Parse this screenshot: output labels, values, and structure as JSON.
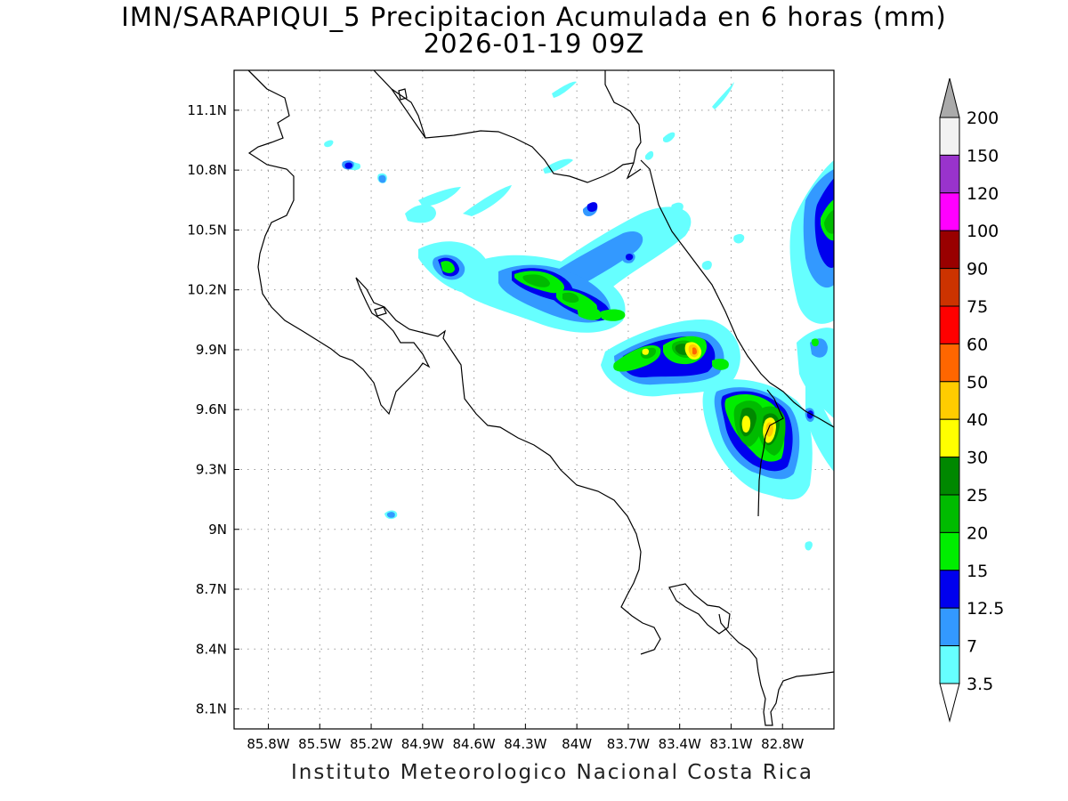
{
  "title_line1": "IMN/SARAPIQUI_5 Precipitacion Acumulada en 6 horas (mm)",
  "title_line2": "2026-01-19 09Z",
  "footer": "Instituto Meteorologico Nacional Costa Rica",
  "map": {
    "lon_range": [
      -86.0,
      -82.5
    ],
    "lat_range": [
      8.0,
      11.3
    ],
    "lon_ticks": [
      {
        "v": -85.8,
        "label": "85.8W"
      },
      {
        "v": -85.5,
        "label": "85.5W"
      },
      {
        "v": -85.2,
        "label": "85.2W"
      },
      {
        "v": -84.9,
        "label": "84.9W"
      },
      {
        "v": -84.6,
        "label": "84.6W"
      },
      {
        "v": -84.3,
        "label": "84.3W"
      },
      {
        "v": -84.0,
        "label": "84W"
      },
      {
        "v": -83.7,
        "label": "83.7W"
      },
      {
        "v": -83.4,
        "label": "83.4W"
      },
      {
        "v": -83.1,
        "label": "83.1W"
      },
      {
        "v": -82.8,
        "label": "82.8W"
      }
    ],
    "lat_ticks": [
      {
        "v": 11.1,
        "label": "11.1N"
      },
      {
        "v": 10.8,
        "label": "10.8N"
      },
      {
        "v": 10.5,
        "label": "10.5N"
      },
      {
        "v": 10.2,
        "label": "10.2N"
      },
      {
        "v": 9.9,
        "label": "9.9N"
      },
      {
        "v": 9.6,
        "label": "9.6N"
      },
      {
        "v": 9.3,
        "label": "9.3N"
      },
      {
        "v": 9.0,
        "label": "9N"
      },
      {
        "v": 8.7,
        "label": "8.7N"
      },
      {
        "v": 8.4,
        "label": "8.4N"
      },
      {
        "v": 8.1,
        "label": "8.1N"
      }
    ],
    "grid": true,
    "layer": "6-hour accumulated precipitation (mm)"
  },
  "colorbar": {
    "levels": [
      "200",
      "150",
      "120",
      "100",
      "90",
      "75",
      "60",
      "50",
      "40",
      "30",
      "25",
      "20",
      "15",
      "12.5",
      "7",
      "3.5"
    ],
    "colors": [
      "#f2f2f2",
      "#9933cc",
      "#ff00ff",
      "#990000",
      "#cc3300",
      "#ff0000",
      "#ff6600",
      "#ffcc00",
      "#ffff00",
      "#008800",
      "#00bb00",
      "#00ee00",
      "#0000ee",
      "#3399ff",
      "#66ffff"
    ],
    "over_color": "#aaaaaa",
    "under_color": "#ffffff"
  },
  "colors": {
    "c3_5": "#66ffff",
    "c7": "#3399ff",
    "c12_5": "#0000ee",
    "c15": "#00ee00",
    "c20": "#00bb00",
    "c25": "#008800",
    "c30": "#ffff00",
    "c40": "#ffcc00",
    "c50": "#ff6600"
  }
}
